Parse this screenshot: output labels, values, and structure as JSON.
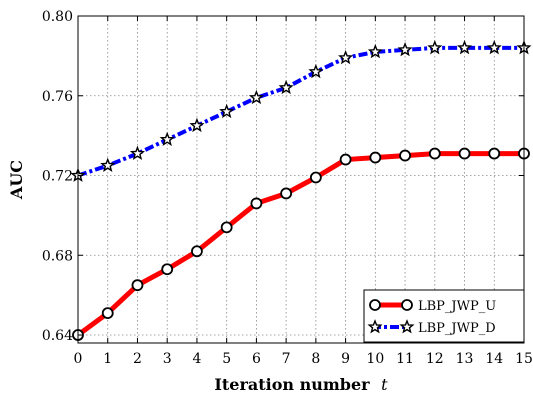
{
  "chart_data": {
    "type": "line",
    "xlabel": "Iteration number",
    "xlabel_var": "t",
    "ylabel": "AUC",
    "xlim": [
      0,
      15
    ],
    "ylim": [
      0.636,
      0.8
    ],
    "x_ticks": [
      0,
      1,
      2,
      3,
      4,
      5,
      6,
      7,
      8,
      9,
      10,
      11,
      12,
      13,
      14,
      15
    ],
    "y_ticks": [
      0.64,
      0.68,
      0.72,
      0.76,
      0.8
    ],
    "y_tick_labels": [
      "0.64",
      "0.68",
      "0.72",
      "0.76",
      "0.80"
    ],
    "grid": true,
    "grid_style": "dotted",
    "legend_position": "bottom-right",
    "x": [
      0,
      1,
      2,
      3,
      4,
      5,
      6,
      7,
      8,
      9,
      10,
      11,
      12,
      13,
      14,
      15
    ],
    "series": [
      {
        "name": "LBP_JWP_U",
        "color": "#ff0000",
        "line_style": "solid",
        "marker": "circle",
        "values": [
          0.64,
          0.651,
          0.665,
          0.673,
          0.682,
          0.694,
          0.706,
          0.711,
          0.719,
          0.728,
          0.729,
          0.73,
          0.731,
          0.731,
          0.731,
          0.731
        ]
      },
      {
        "name": "LBP_JWP_D",
        "color": "#0000ff",
        "line_style": "dash-dot",
        "marker": "star",
        "values": [
          0.72,
          0.725,
          0.731,
          0.738,
          0.745,
          0.752,
          0.759,
          0.764,
          0.772,
          0.779,
          0.782,
          0.783,
          0.784,
          0.784,
          0.784,
          0.784
        ]
      }
    ]
  }
}
